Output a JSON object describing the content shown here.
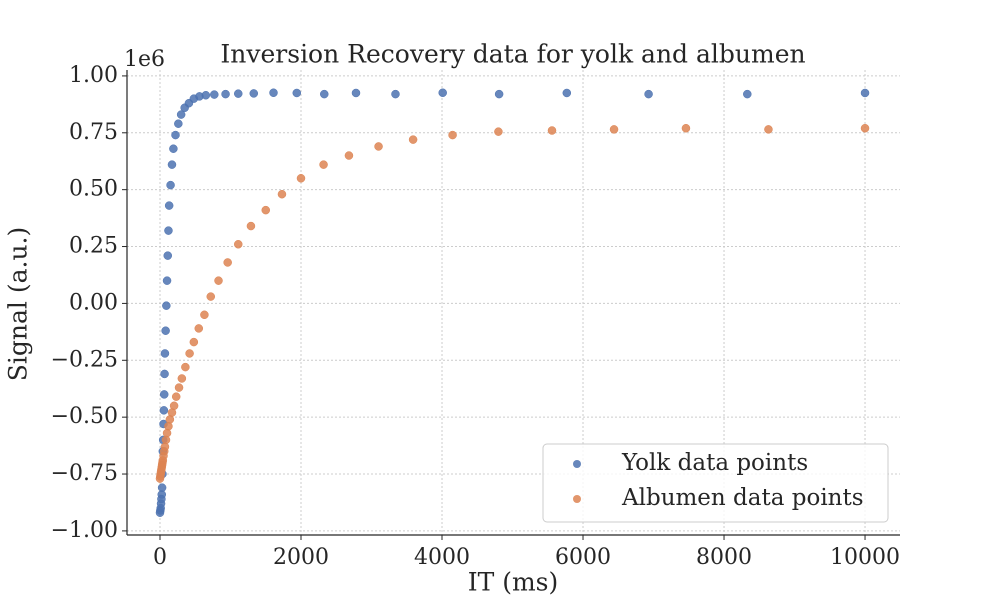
{
  "chart_data": {
    "type": "scatter",
    "title": "Inversion Recovery data for yolk and albumen",
    "x_label": "IT (ms)",
    "y_label": "Signal (a.u.)",
    "y_offset_label": "1e6",
    "xlim": [
      -468,
      10496
    ],
    "ylim": [
      -1.018,
      1.026
    ],
    "xticks": [
      0,
      2000,
      4000,
      6000,
      8000,
      10000
    ],
    "yticks": [
      {
        "value": 1,
        "label": "1.00"
      },
      {
        "value": 0.75,
        "label": "0.75"
      },
      {
        "value": 0.5,
        "label": "0.50"
      },
      {
        "value": 0.25,
        "label": "0.25"
      },
      {
        "value": 0,
        "label": "0.00"
      },
      {
        "value": -0.25,
        "label": "−0.25"
      },
      {
        "value": -0.5,
        "label": "−0.50"
      },
      {
        "value": -0.75,
        "label": "−0.75"
      },
      {
        "value": -1,
        "label": "−1.00"
      }
    ],
    "grid": true,
    "legend": "lower right",
    "series": [
      {
        "name": "Yolk data points",
        "color": "#4c72b0",
        "x": [
          0,
          5,
          10,
          15,
          20,
          25,
          30,
          35,
          40,
          45,
          50,
          55,
          60,
          65,
          70,
          80,
          90,
          100,
          110,
          120,
          130,
          150,
          170,
          190,
          220,
          260,
          300,
          350,
          410,
          480,
          560,
          650,
          770,
          930,
          1110,
          1330,
          1610,
          1940,
          2330,
          2780,
          3340,
          4010,
          4810,
          5770,
          6930,
          8330,
          10000
        ],
        "values": [
          -0.92,
          -0.91,
          -0.9,
          -0.88,
          -0.86,
          -0.84,
          -0.81,
          -0.75,
          -0.65,
          -0.6,
          -0.53,
          -0.47,
          -0.4,
          -0.31,
          -0.22,
          -0.12,
          -0.01,
          0.1,
          0.21,
          0.32,
          0.43,
          0.52,
          0.61,
          0.68,
          0.74,
          0.79,
          0.83,
          0.86,
          0.88,
          0.9,
          0.91,
          0.915,
          0.918,
          0.92,
          0.922,
          0.923,
          0.926,
          0.925,
          0.92,
          0.925,
          0.92,
          0.926,
          0.92,
          0.925,
          0.92,
          0.92,
          0.925
        ]
      },
      {
        "name": "Albumen data points",
        "color": "#dd8452",
        "x": [
          0,
          5,
          10,
          15,
          20,
          25,
          30,
          35,
          40,
          50,
          60,
          70,
          85,
          100,
          120,
          140,
          170,
          200,
          230,
          270,
          310,
          360,
          420,
          480,
          550,
          630,
          720,
          830,
          960,
          1110,
          1290,
          1500,
          1730,
          2000,
          2320,
          2680,
          3100,
          3590,
          4150,
          4800,
          5560,
          6440,
          7460,
          8630,
          10000
        ],
        "values": [
          -0.77,
          -0.76,
          -0.75,
          -0.74,
          -0.73,
          -0.72,
          -0.71,
          -0.7,
          -0.69,
          -0.67,
          -0.65,
          -0.63,
          -0.6,
          -0.57,
          -0.54,
          -0.51,
          -0.48,
          -0.45,
          -0.41,
          -0.37,
          -0.33,
          -0.28,
          -0.22,
          -0.17,
          -0.11,
          -0.05,
          0.03,
          0.1,
          0.18,
          0.26,
          0.34,
          0.41,
          0.48,
          0.55,
          0.61,
          0.65,
          0.69,
          0.72,
          0.74,
          0.755,
          0.76,
          0.765,
          0.77,
          0.765,
          0.77
        ]
      }
    ]
  }
}
